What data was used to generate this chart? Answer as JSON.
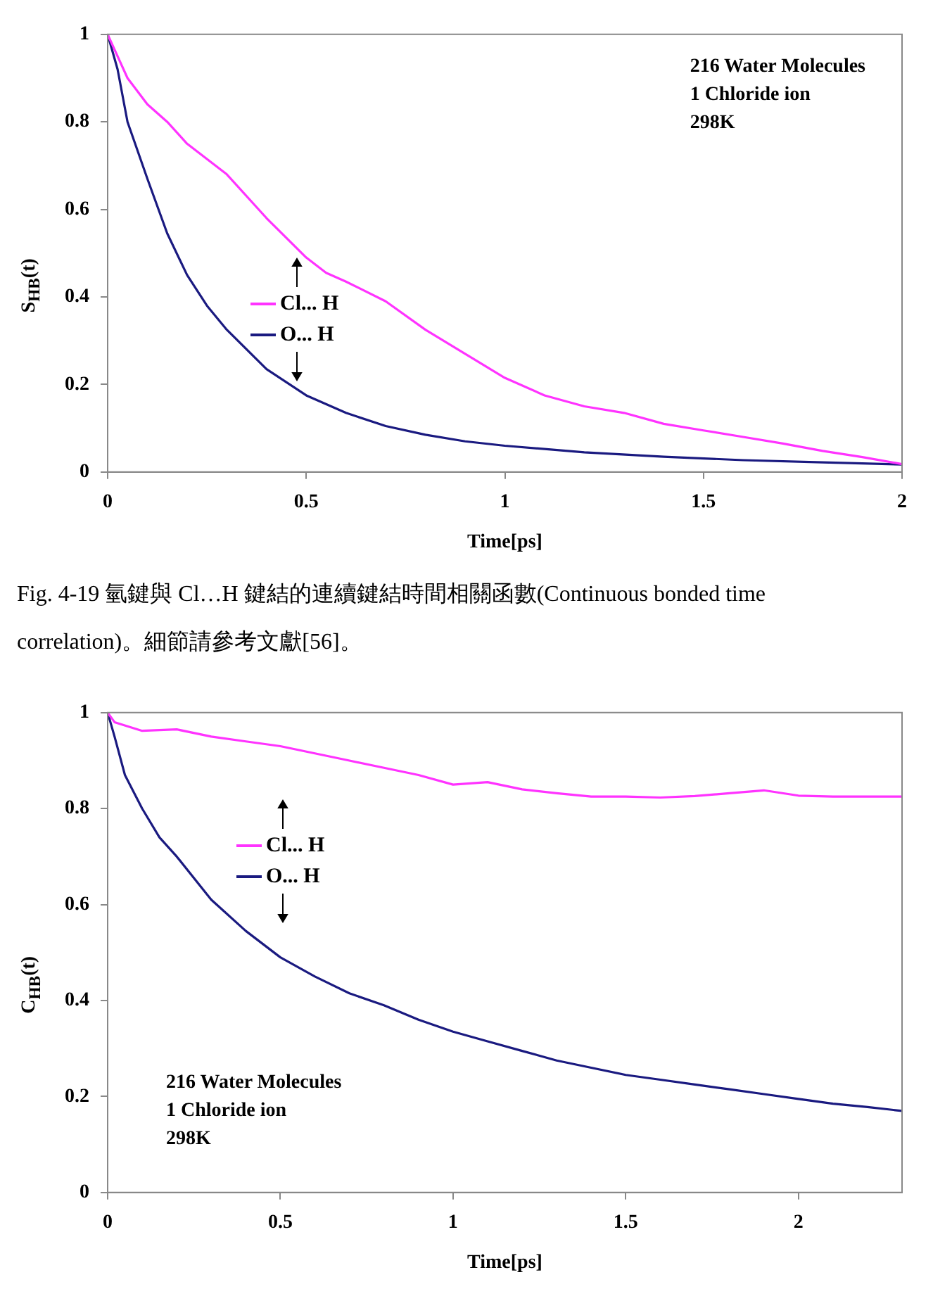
{
  "chart_data": [
    {
      "type": "line",
      "xlabel": "Time[ps]",
      "ylabel": "S$_{HB}$(t)",
      "xlim": [
        0,
        2
      ],
      "xticks": [
        0,
        0.5,
        1,
        1.5,
        2
      ],
      "ylim": [
        0,
        1
      ],
      "yticks": [
        0,
        0.2,
        0.4,
        0.6,
        0.8,
        1
      ],
      "grid": false,
      "legend": "left",
      "marker": "none",
      "line_style": "solid",
      "annotations": [
        "216 Water Molecules\n1 Chloride ion\n298K",
        "Fig. 4-19  氫鍵與 Cl…H 鍵結的連續鍵結時間相關函數(Continuous bonded time correlation)。細節請參考文獻[56]。"
      ],
      "series": [
        {
          "name": "Cl... H",
          "color": "#ff33ff",
          "x": [
            0,
            0.05,
            0.1,
            0.15,
            0.2,
            0.3,
            0.4,
            0.45,
            0.5,
            0.55,
            0.6,
            0.7,
            0.8,
            0.9,
            1.0,
            1.1,
            1.2,
            1.3,
            1.4,
            1.5,
            1.6,
            1.7,
            1.8,
            1.9,
            2.0
          ],
          "values": [
            1,
            0.9,
            0.84,
            0.8,
            0.75,
            0.68,
            0.58,
            0.535,
            0.49,
            0.455,
            0.435,
            0.39,
            0.325,
            0.27,
            0.215,
            0.175,
            0.15,
            0.135,
            0.11,
            0.095,
            0.08,
            0.065,
            0.048,
            0.034,
            0.018
          ]
        },
        {
          "name": "O... H",
          "color": "#1a1a80",
          "x": [
            0,
            0.025,
            0.05,
            0.1,
            0.15,
            0.2,
            0.25,
            0.3,
            0.4,
            0.5,
            0.6,
            0.7,
            0.8,
            0.9,
            1.0,
            1.2,
            1.4,
            1.6,
            1.8,
            2.0
          ],
          "values": [
            1,
            0.92,
            0.8,
            0.67,
            0.545,
            0.45,
            0.38,
            0.325,
            0.235,
            0.175,
            0.135,
            0.105,
            0.085,
            0.07,
            0.06,
            0.045,
            0.035,
            0.027,
            0.022,
            0.017
          ]
        }
      ]
    },
    {
      "type": "line",
      "xlabel": "Time[ps]",
      "ylabel": "C$_{HB}$(t)",
      "xlim": [
        0,
        2.3
      ],
      "xticks": [
        0,
        0.5,
        1,
        1.5,
        2
      ],
      "ylim": [
        0,
        1
      ],
      "yticks": [
        0,
        0.2,
        0.4,
        0.6,
        0.8,
        1
      ],
      "grid": false,
      "legend": "top left",
      "marker": "none",
      "line_style": "solid",
      "annotations": [
        "216 Water Molecules\n1 Chloride ion\n298K"
      ],
      "series": [
        {
          "name": "Cl... H",
          "color": "#ff33ff",
          "x": [
            0,
            0.02,
            0.1,
            0.2,
            0.3,
            0.4,
            0.5,
            0.6,
            0.7,
            0.8,
            0.9,
            1.0,
            1.1,
            1.2,
            1.3,
            1.4,
            1.5,
            1.6,
            1.7,
            1.8,
            1.9,
            2.0,
            2.1,
            2.2,
            2.3
          ],
          "values": [
            1,
            0.98,
            0.962,
            0.965,
            0.95,
            0.94,
            0.93,
            0.915,
            0.9,
            0.885,
            0.87,
            0.85,
            0.855,
            0.84,
            0.832,
            0.825,
            0.825,
            0.823,
            0.826,
            0.832,
            0.838,
            0.827,
            0.825,
            0.825,
            0.825
          ]
        },
        {
          "name": "O... H",
          "color": "#1a1a80",
          "x": [
            0,
            0.02,
            0.05,
            0.1,
            0.15,
            0.2,
            0.3,
            0.4,
            0.5,
            0.6,
            0.7,
            0.8,
            0.9,
            1.0,
            1.1,
            1.2,
            1.3,
            1.4,
            1.5,
            1.6,
            1.7,
            1.8,
            1.9,
            2.0,
            2.1,
            2.2,
            2.3
          ],
          "values": [
            1,
            0.95,
            0.87,
            0.8,
            0.74,
            0.7,
            0.61,
            0.545,
            0.49,
            0.45,
            0.415,
            0.39,
            0.36,
            0.335,
            0.315,
            0.295,
            0.275,
            0.26,
            0.245,
            0.235,
            0.225,
            0.215,
            0.205,
            0.195,
            0.185,
            0.178,
            0.17
          ]
        }
      ]
    }
  ]
}
